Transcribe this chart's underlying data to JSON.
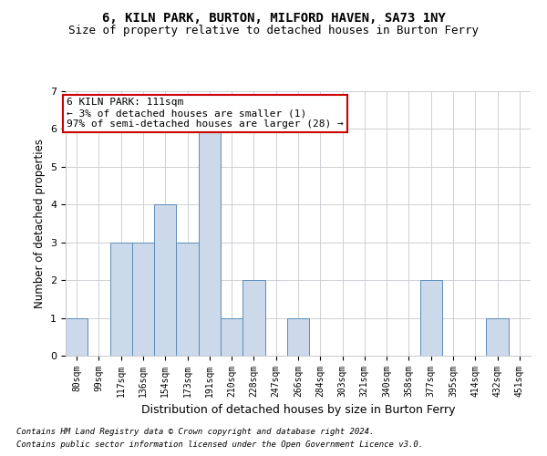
{
  "title": "6, KILN PARK, BURTON, MILFORD HAVEN, SA73 1NY",
  "subtitle": "Size of property relative to detached houses in Burton Ferry",
  "xlabel": "Distribution of detached houses by size in Burton Ferry",
  "ylabel": "Number of detached properties",
  "categories": [
    "80sqm",
    "99sqm",
    "117sqm",
    "136sqm",
    "154sqm",
    "173sqm",
    "191sqm",
    "210sqm",
    "228sqm",
    "247sqm",
    "266sqm",
    "284sqm",
    "303sqm",
    "321sqm",
    "340sqm",
    "358sqm",
    "377sqm",
    "395sqm",
    "414sqm",
    "432sqm",
    "451sqm"
  ],
  "values": [
    1,
    0,
    3,
    3,
    4,
    3,
    6,
    1,
    2,
    0,
    1,
    0,
    0,
    0,
    0,
    0,
    2,
    0,
    0,
    1,
    0
  ],
  "bar_color": "#ccd9ea",
  "bar_edge_color": "#5b8db8",
  "annotation_box_text": "6 KILN PARK: 111sqm\n← 3% of detached houses are smaller (1)\n97% of semi-detached houses are larger (28) →",
  "annotation_box_color": "#ffffff",
  "annotation_box_edge_color": "#cc0000",
  "ylim": [
    0,
    7
  ],
  "yticks": [
    0,
    1,
    2,
    3,
    4,
    5,
    6,
    7
  ],
  "footer_line1": "Contains HM Land Registry data © Crown copyright and database right 2024.",
  "footer_line2": "Contains public sector information licensed under the Open Government Licence v3.0.",
  "bg_color": "#ffffff",
  "grid_color": "#c8c8d0",
  "title_fontsize": 10,
  "subtitle_fontsize": 9,
  "axis_label_fontsize": 8.5,
  "tick_fontsize": 7,
  "annotation_fontsize": 8,
  "footer_fontsize": 6.5
}
